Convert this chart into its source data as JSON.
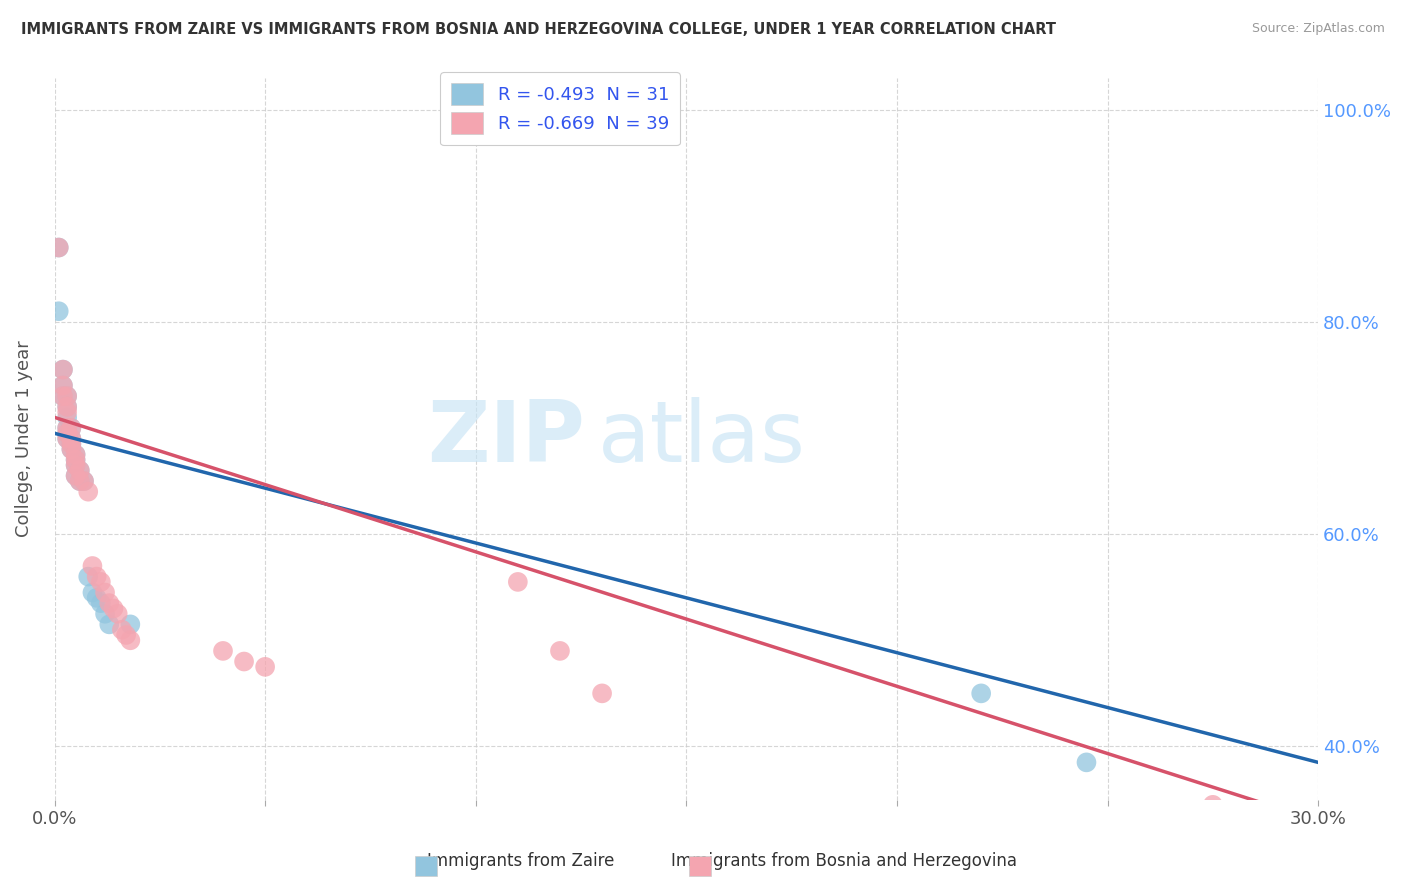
{
  "title": "IMMIGRANTS FROM ZAIRE VS IMMIGRANTS FROM BOSNIA AND HERZEGOVINA COLLEGE, UNDER 1 YEAR CORRELATION CHART",
  "source": "Source: ZipAtlas.com",
  "ylabel": "College, Under 1 year",
  "xlim": [
    0.0,
    0.3
  ],
  "ylim": [
    0.35,
    1.03
  ],
  "x_ticks": [
    0.0,
    0.05,
    0.1,
    0.15,
    0.2,
    0.25,
    0.3
  ],
  "x_tick_labels": [
    "0.0%",
    "",
    "",
    "",
    "",
    "",
    "30.0%"
  ],
  "y_ticks": [
    0.4,
    0.6,
    0.8,
    1.0
  ],
  "y_tick_labels": [
    "40.0%",
    "60.0%",
    "80.0%",
    "100.0%"
  ],
  "legend1_label": "R = -0.493  N = 31",
  "legend2_label": "R = -0.669  N = 39",
  "legend_xlabel1": "Immigrants from Zaire",
  "legend_xlabel2": "Immigrants from Bosnia and Herzegovina",
  "color_zaire": "#92c5de",
  "color_bosnia": "#f4a5b0",
  "color_line_zaire": "#2166ac",
  "color_line_bosnia": "#d6526a",
  "watermark_zip": "ZIP",
  "watermark_atlas": "atlas",
  "background_color": "#ffffff",
  "grid_color": "#cccccc",
  "zaire_points": [
    [
      0.001,
      0.87
    ],
    [
      0.001,
      0.81
    ],
    [
      0.002,
      0.755
    ],
    [
      0.002,
      0.74
    ],
    [
      0.002,
      0.73
    ],
    [
      0.003,
      0.73
    ],
    [
      0.003,
      0.72
    ],
    [
      0.003,
      0.71
    ],
    [
      0.003,
      0.7
    ],
    [
      0.003,
      0.695
    ],
    [
      0.003,
      0.69
    ],
    [
      0.004,
      0.7
    ],
    [
      0.004,
      0.69
    ],
    [
      0.004,
      0.685
    ],
    [
      0.004,
      0.68
    ],
    [
      0.005,
      0.675
    ],
    [
      0.005,
      0.67
    ],
    [
      0.005,
      0.665
    ],
    [
      0.005,
      0.655
    ],
    [
      0.006,
      0.66
    ],
    [
      0.006,
      0.65
    ],
    [
      0.007,
      0.65
    ],
    [
      0.008,
      0.56
    ],
    [
      0.009,
      0.545
    ],
    [
      0.01,
      0.54
    ],
    [
      0.011,
      0.535
    ],
    [
      0.012,
      0.525
    ],
    [
      0.013,
      0.515
    ],
    [
      0.018,
      0.515
    ],
    [
      0.22,
      0.45
    ],
    [
      0.245,
      0.385
    ]
  ],
  "bosnia_points": [
    [
      0.001,
      0.87
    ],
    [
      0.002,
      0.755
    ],
    [
      0.002,
      0.74
    ],
    [
      0.002,
      0.73
    ],
    [
      0.003,
      0.73
    ],
    [
      0.003,
      0.72
    ],
    [
      0.003,
      0.715
    ],
    [
      0.003,
      0.7
    ],
    [
      0.003,
      0.695
    ],
    [
      0.003,
      0.69
    ],
    [
      0.004,
      0.7
    ],
    [
      0.004,
      0.69
    ],
    [
      0.004,
      0.685
    ],
    [
      0.004,
      0.68
    ],
    [
      0.005,
      0.675
    ],
    [
      0.005,
      0.67
    ],
    [
      0.005,
      0.665
    ],
    [
      0.005,
      0.655
    ],
    [
      0.006,
      0.66
    ],
    [
      0.006,
      0.65
    ],
    [
      0.007,
      0.65
    ],
    [
      0.008,
      0.64
    ],
    [
      0.009,
      0.57
    ],
    [
      0.01,
      0.56
    ],
    [
      0.011,
      0.555
    ],
    [
      0.012,
      0.545
    ],
    [
      0.013,
      0.535
    ],
    [
      0.014,
      0.53
    ],
    [
      0.015,
      0.525
    ],
    [
      0.016,
      0.51
    ],
    [
      0.017,
      0.505
    ],
    [
      0.018,
      0.5
    ],
    [
      0.04,
      0.49
    ],
    [
      0.045,
      0.48
    ],
    [
      0.05,
      0.475
    ],
    [
      0.11,
      0.555
    ],
    [
      0.12,
      0.49
    ],
    [
      0.13,
      0.45
    ],
    [
      0.275,
      0.345
    ]
  ]
}
